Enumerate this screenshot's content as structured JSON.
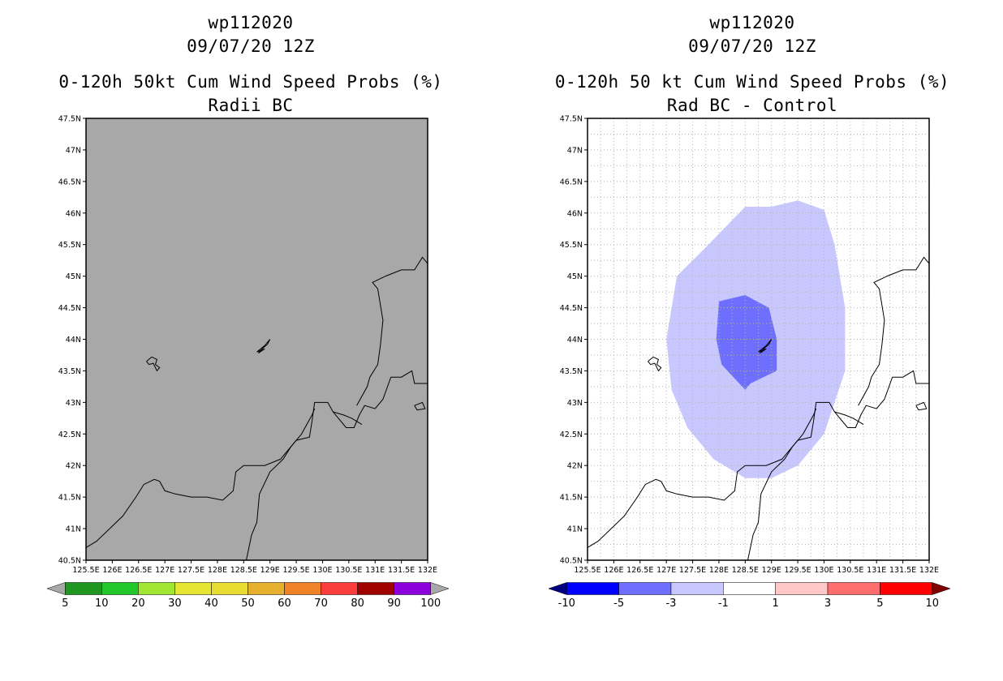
{
  "left": {
    "title_line1": "wp112020",
    "title_line2": "09/07/20 12Z",
    "title_line3": "0-120h 50kt Cum Wind Speed Probs (%)",
    "title_line4": "Radii BC",
    "colorbar": {
      "labels": [
        "5",
        "10",
        "20",
        "30",
        "40",
        "50",
        "60",
        "70",
        "80",
        "90",
        "100"
      ],
      "colors": [
        "#1e9620",
        "#22c82a",
        "#a0e632",
        "#e6e632",
        "#e6dc32",
        "#e6af2e",
        "#f08228",
        "#fa3c3c",
        "#a00000",
        "#8c00dc"
      ],
      "end_left_color": "#a8a8a8",
      "end_right_color": "#a8a8a8"
    }
  },
  "right": {
    "title_line1": "wp112020",
    "title_line2": "09/07/20 12Z",
    "title_line3": "0-120h 50 kt Cum Wind Speed Probs (%)",
    "title_line4": "Rad BC - Control",
    "colorbar": {
      "labels": [
        "-10",
        "-5",
        "-3",
        "-1",
        "1",
        "3",
        "5",
        "10"
      ],
      "colors": [
        "#0000ff",
        "#6e6eff",
        "#c8c8ff",
        "#ffffff",
        "#ffc8c8",
        "#ff6e6e",
        "#ff0000"
      ],
      "end_left_color": "#000080",
      "end_right_color": "#800000"
    }
  },
  "colors": {
    "map_gray": "#a8a8a8",
    "prob_light": "#c8c8ff",
    "prob_medium": "#6e6eff",
    "grid": "#b4b4b4"
  },
  "chart_data": [
    {
      "type": "heatmap",
      "title": "0-120h 50kt Cum Wind Speed Probs (%) Radii BC",
      "xlim": [
        125.5,
        132
      ],
      "ylim": [
        40.5,
        47.5
      ],
      "x_ticks": [
        "125.5E",
        "126E",
        "126.5E",
        "127E",
        "127.5E",
        "128E",
        "128.5E",
        "129E",
        "129.5E",
        "130E",
        "130.5E",
        "131E",
        "131.5E",
        "132E"
      ],
      "y_ticks": [
        "40.5N",
        "41N",
        "41.5N",
        "42N",
        "42.5N",
        "43N",
        "43.5N",
        "44N",
        "44.5N",
        "45N",
        "45.5N",
        "46N",
        "46.5N",
        "47N",
        "47.5N"
      ],
      "fill": "all values below 5% (gray)",
      "grid": false
    },
    {
      "type": "heatmap",
      "title": "0-120h 50 kt Cum Wind Speed Probs (%) Rad BC - Control",
      "xlim": [
        125.5,
        132
      ],
      "ylim": [
        40.5,
        47.5
      ],
      "x_ticks": [
        "125.5E",
        "126E",
        "126.5E",
        "127E",
        "127.5E",
        "128E",
        "128.5E",
        "129E",
        "129.5E",
        "130E",
        "130.5E",
        "131E",
        "131.5E",
        "132E"
      ],
      "y_ticks": [
        "40.5N",
        "41N",
        "41.5N",
        "42N",
        "42.5N",
        "43N",
        "43.5N",
        "44N",
        "44.5N",
        "45N",
        "45.5N",
        "46N",
        "46.5N",
        "47N",
        "47.5N"
      ],
      "grid": true,
      "series": [
        {
          "name": "-3 to -1",
          "polygon": [
            [
              127.8,
              45.5
            ],
            [
              128.5,
              46.1
            ],
            [
              129.0,
              46.1
            ],
            [
              129.5,
              46.2
            ],
            [
              130.0,
              46.05
            ],
            [
              130.2,
              45.5
            ],
            [
              130.4,
              44.5
            ],
            [
              130.4,
              43.5
            ],
            [
              130.0,
              42.5
            ],
            [
              129.5,
              42.0
            ],
            [
              129.0,
              41.8
            ],
            [
              128.5,
              41.8
            ],
            [
              127.9,
              42.1
            ],
            [
              127.4,
              42.6
            ],
            [
              127.1,
              43.2
            ],
            [
              127.0,
              44.0
            ],
            [
              127.1,
              44.5
            ],
            [
              127.2,
              45.0
            ]
          ]
        },
        {
          "name": "-5 to -3",
          "polygon": [
            [
              128.0,
              44.6
            ],
            [
              128.5,
              44.7
            ],
            [
              128.95,
              44.5
            ],
            [
              129.1,
              44.0
            ],
            [
              129.1,
              43.5
            ],
            [
              128.6,
              43.3
            ],
            [
              128.5,
              43.2
            ],
            [
              128.05,
              43.6
            ],
            [
              127.95,
              44.0
            ]
          ]
        }
      ]
    }
  ]
}
